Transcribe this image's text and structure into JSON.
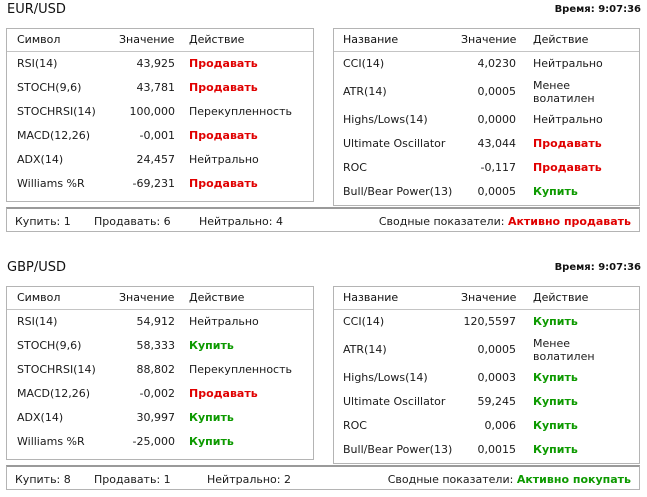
{
  "sections": [
    {
      "pair": "EUR/USD",
      "time_label": "Время:",
      "time_value": "9:07:36",
      "left_headers": [
        "Символ",
        "Значение",
        "Действие"
      ],
      "right_headers": [
        "Название",
        "Значение",
        "Действие"
      ],
      "left_rows": [
        {
          "name": "RSI(14)",
          "value": "43,925",
          "action": "Продавать",
          "type": "sell"
        },
        {
          "name": "STOCH(9,6)",
          "value": "43,781",
          "action": "Продавать",
          "type": "sell"
        },
        {
          "name": "STOCHRSI(14)",
          "value": "100,000",
          "action": "Перекупленность",
          "type": "neutral"
        },
        {
          "name": "MACD(12,26)",
          "value": "-0,001",
          "action": "Продавать",
          "type": "sell"
        },
        {
          "name": "ADX(14)",
          "value": "24,457",
          "action": "Нейтрально",
          "type": "neutral"
        },
        {
          "name": "Williams %R",
          "value": "-69,231",
          "action": "Продавать",
          "type": "sell"
        }
      ],
      "right_rows": [
        {
          "name": "CCI(14)",
          "value": "4,0230",
          "action": "Нейтрально",
          "type": "neutral"
        },
        {
          "name": "ATR(14)",
          "value": "0,0005",
          "action": "Менее волатилен",
          "type": "neutral"
        },
        {
          "name": "Highs/Lows(14)",
          "value": "0,0000",
          "action": "Нейтрально",
          "type": "neutral"
        },
        {
          "name": "Ultimate Oscillator",
          "value": "43,044",
          "action": "Продавать",
          "type": "sell"
        },
        {
          "name": "ROC",
          "value": "-0,117",
          "action": "Продавать",
          "type": "sell"
        },
        {
          "name": "Bull/Bear Power(13)",
          "value": "0,0005",
          "action": "Купить",
          "type": "buy"
        }
      ],
      "summary": {
        "buy": "Купить: 1",
        "sell": "Продавать: 6",
        "neutral": "Нейтрально: 4",
        "overall_label": "Сводные показатели:",
        "overall_value": "Активно продавать",
        "overall_type": "sell"
      }
    },
    {
      "pair": "GBP/USD",
      "time_label": "Время:",
      "time_value": "9:07:36",
      "left_headers": [
        "Символ",
        "Значение",
        "Действие"
      ],
      "right_headers": [
        "Название",
        "Значение",
        "Действие"
      ],
      "left_rows": [
        {
          "name": "RSI(14)",
          "value": "54,912",
          "action": "Нейтрально",
          "type": "neutral"
        },
        {
          "name": "STOCH(9,6)",
          "value": "58,333",
          "action": "Купить",
          "type": "buy"
        },
        {
          "name": "STOCHRSI(14)",
          "value": "88,802",
          "action": "Перекупленность",
          "type": "neutral"
        },
        {
          "name": "MACD(12,26)",
          "value": "-0,002",
          "action": "Продавать",
          "type": "sell"
        },
        {
          "name": "ADX(14)",
          "value": "30,997",
          "action": "Купить",
          "type": "buy"
        },
        {
          "name": "Williams %R",
          "value": "-25,000",
          "action": "Купить",
          "type": "buy"
        }
      ],
      "right_rows": [
        {
          "name": "CCI(14)",
          "value": "120,5597",
          "action": "Купить",
          "type": "buy"
        },
        {
          "name": "ATR(14)",
          "value": "0,0005",
          "action": "Менее волатилен",
          "type": "neutral"
        },
        {
          "name": "Highs/Lows(14)",
          "value": "0,0003",
          "action": "Купить",
          "type": "buy"
        },
        {
          "name": "Ultimate Oscillator",
          "value": "59,245",
          "action": "Купить",
          "type": "buy"
        },
        {
          "name": "ROC",
          "value": "0,006",
          "action": "Купить",
          "type": "buy"
        },
        {
          "name": "Bull/Bear Power(13)",
          "value": "0,0015",
          "action": "Купить",
          "type": "buy"
        }
      ],
      "summary": {
        "buy": "Купить: 8",
        "sell": "Продавать: 1",
        "neutral": "Нейтрально: 2",
        "overall_label": "Сводные показатели:",
        "overall_value": "Активно покупать",
        "overall_type": "buy"
      }
    }
  ],
  "colors": {
    "sell": "#e00000",
    "buy": "#0d9a00",
    "neutral": "#1a1a1a",
    "border": "#b4b4b4"
  }
}
